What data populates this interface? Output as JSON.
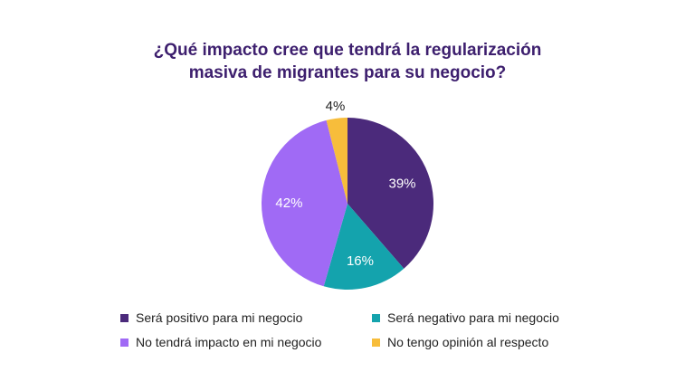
{
  "chart_data": {
    "type": "pie",
    "title_lines": [
      "¿Qué impacto cree que tendrá la regularización",
      "masiva de migrantes para su negocio?"
    ],
    "slices": [
      {
        "label": "Será positivo para mi negocio",
        "value": 39,
        "display": "39%",
        "color": "#4b2a7b",
        "label_color": "#ffffff"
      },
      {
        "label": "Será negativo para mi negocio",
        "value": 16,
        "display": "16%",
        "color": "#14a3ad",
        "label_color": "#ffffff"
      },
      {
        "label": "No tendrá impacto en mi negocio",
        "value": 42,
        "display": "42%",
        "color": "#a06af5",
        "label_color": "#ffffff"
      },
      {
        "label": "No tengo opinión al respecto",
        "value": 4,
        "display": "4%",
        "color": "#f7bd3b",
        "label_color": "#222222"
      }
    ],
    "legend_position": "bottom"
  }
}
